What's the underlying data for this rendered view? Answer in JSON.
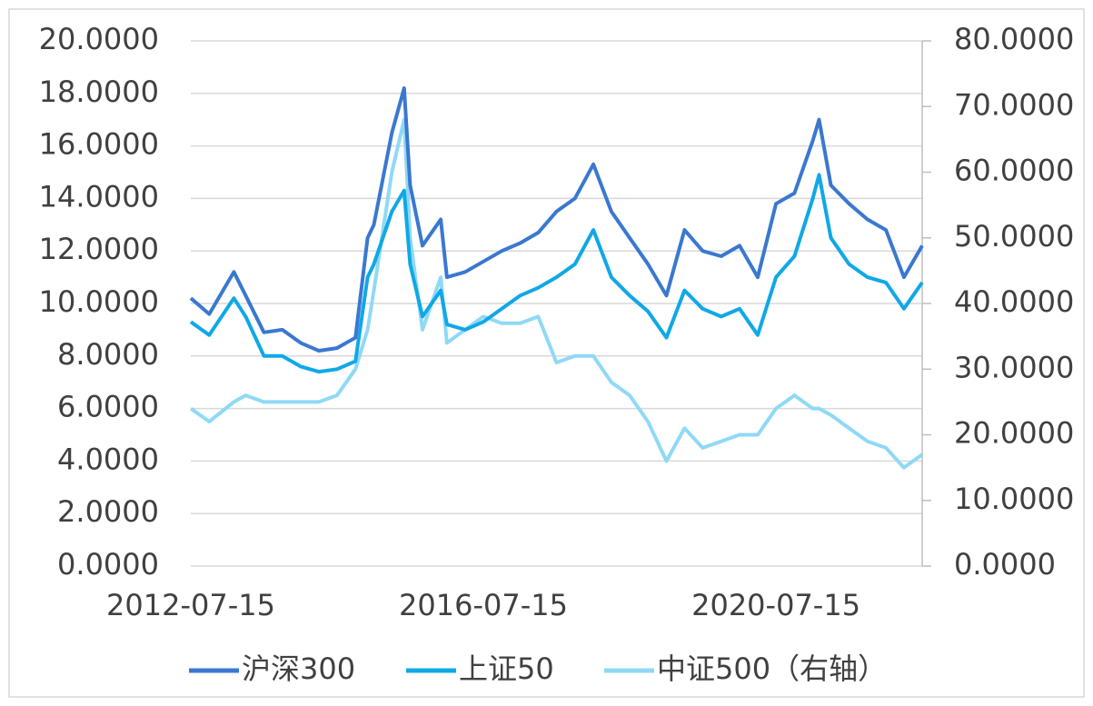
{
  "chart_data": {
    "type": "line",
    "x": [
      "2012-07-15",
      "2012-10-15",
      "2013-02-15",
      "2013-04-15",
      "2013-07-15",
      "2013-10-15",
      "2014-01-15",
      "2014-04-15",
      "2014-07-15",
      "2014-10-15",
      "2014-12-15",
      "2015-01-15",
      "2015-04-15",
      "2015-06-15",
      "2015-07-15",
      "2015-09-15",
      "2015-12-15",
      "2016-01-15",
      "2016-04-15",
      "2016-07-15",
      "2016-10-15",
      "2017-01-15",
      "2017-04-15",
      "2017-07-15",
      "2017-10-15",
      "2018-01-15",
      "2018-04-15",
      "2018-07-15",
      "2018-10-15",
      "2019-01-15",
      "2019-04-15",
      "2019-07-15",
      "2019-10-15",
      "2020-01-15",
      "2020-04-15",
      "2020-07-15",
      "2020-10-15",
      "2021-01-15",
      "2021-02-15",
      "2021-04-15",
      "2021-07-15",
      "2021-10-15",
      "2022-01-15",
      "2022-04-15",
      "2022-07-15"
    ],
    "series": [
      {
        "name": "沪深300",
        "color": "#3a78d0",
        "values": [
          10.2,
          9.6,
          11.2,
          10.3,
          8.9,
          9.0,
          8.5,
          8.2,
          8.3,
          8.7,
          12.5,
          13.0,
          16.5,
          18.2,
          14.5,
          12.2,
          13.2,
          11.0,
          11.2,
          11.6,
          12.0,
          12.3,
          12.7,
          13.5,
          14.0,
          15.3,
          13.5,
          12.5,
          11.5,
          10.3,
          12.8,
          12.0,
          11.8,
          12.2,
          11.0,
          13.8,
          14.2,
          16.2,
          17.0,
          14.5,
          13.8,
          13.2,
          12.8,
          11.0,
          12.2
        ]
      },
      {
        "name": "上证50",
        "color": "#10a8e6",
        "values": [
          9.3,
          8.8,
          10.2,
          9.5,
          8.0,
          8.0,
          7.6,
          7.4,
          7.5,
          7.8,
          11.0,
          11.5,
          13.5,
          14.3,
          11.5,
          9.5,
          10.5,
          9.2,
          9.0,
          9.3,
          9.8,
          10.3,
          10.6,
          11.0,
          11.5,
          12.8,
          11.0,
          10.3,
          9.7,
          8.7,
          10.5,
          9.8,
          9.5,
          9.8,
          8.8,
          11.0,
          11.8,
          14.0,
          14.9,
          12.5,
          11.5,
          11.0,
          10.8,
          9.8,
          10.8
        ]
      },
      {
        "name": "中证500（右轴）",
        "color": "#8fd9f6",
        "axis": "y2",
        "values": [
          24,
          22,
          25,
          26,
          25,
          25,
          25,
          25,
          26,
          30,
          36,
          42,
          60,
          68,
          50,
          36,
          44,
          34,
          36,
          38,
          37,
          37,
          38,
          31,
          32,
          32,
          28,
          26,
          22,
          16,
          21,
          18,
          19,
          20,
          20,
          24,
          26,
          24,
          24,
          23,
          21,
          19,
          18,
          15,
          17
        ]
      }
    ],
    "xlim": [
      "2012-07-15",
      "2022-07-15"
    ],
    "xticks": [
      "2012-07-15",
      "2016-07-15",
      "2020-07-15"
    ],
    "ylim": [
      0,
      20
    ],
    "yticks": [
      {
        "value": 0,
        "label": "0.0000"
      },
      {
        "value": 2,
        "label": "2.0000"
      },
      {
        "value": 4,
        "label": "4.0000"
      },
      {
        "value": 6,
        "label": "6.0000"
      },
      {
        "value": 8,
        "label": "8.0000"
      },
      {
        "value": 10,
        "label": "10.0000"
      },
      {
        "value": 12,
        "label": "12.0000"
      },
      {
        "value": 14,
        "label": "14.0000"
      },
      {
        "value": 16,
        "label": "16.0000"
      },
      {
        "value": 18,
        "label": "18.0000"
      },
      {
        "value": 20,
        "label": "20.0000"
      }
    ],
    "y2lim": [
      0,
      80
    ],
    "y2ticks": [
      {
        "value": 0,
        "label": "0.0000"
      },
      {
        "value": 10,
        "label": "10.0000"
      },
      {
        "value": 20,
        "label": "20.0000"
      },
      {
        "value": 30,
        "label": "30.0000"
      },
      {
        "value": 40,
        "label": "40.0000"
      },
      {
        "value": 50,
        "label": "50.0000"
      },
      {
        "value": 60,
        "label": "60.0000"
      },
      {
        "value": 70,
        "label": "70.0000"
      },
      {
        "value": 80,
        "label": "80.0000"
      }
    ],
    "grid": true,
    "legend": "bottom"
  }
}
